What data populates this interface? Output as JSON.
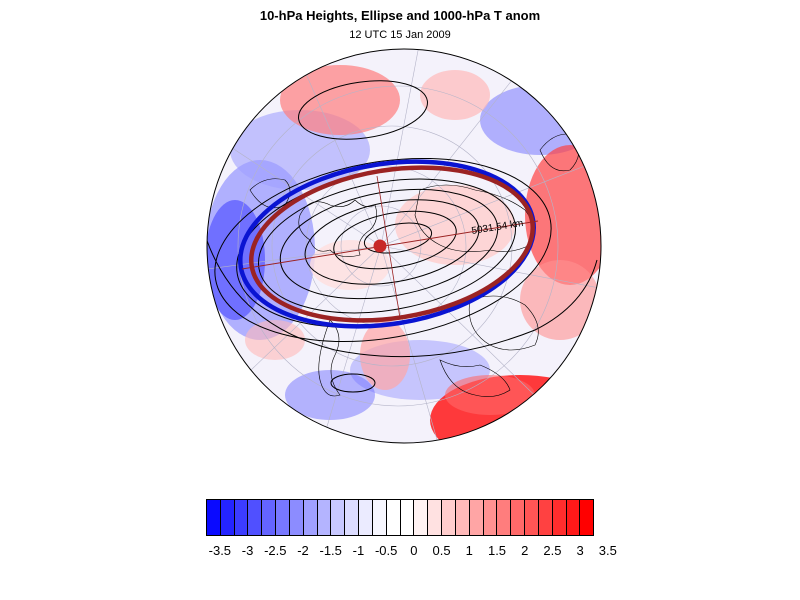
{
  "title": "10-hPa Heights, Ellipse and 1000-hPa T anom",
  "subtitle": "12 UTC 15 Jan 2009",
  "map": {
    "projection": "north polar orthographic",
    "ellipse_label": "5031.54 km",
    "colors": {
      "ellipse_blue": "#0a14d2",
      "ellipse_red": "#9b2323",
      "pole_dot": "#c82828",
      "contour": "#000000"
    }
  },
  "colorbar": {
    "labels": [
      "-3.5",
      "-3",
      "-2.5",
      "-2",
      "-1.5",
      "-1",
      "-0.5",
      "0",
      "0.5",
      "1",
      "1.5",
      "2",
      "2.5",
      "3",
      "3.5"
    ],
    "colors": [
      "#0a0aff",
      "#2424ff",
      "#3c3cff",
      "#5050ff",
      "#6464ff",
      "#7878ff",
      "#8c8cff",
      "#a0a0ff",
      "#b4b4ff",
      "#c8c8ff",
      "#dcdcff",
      "#ebebff",
      "#f7f7ff",
      "#ffffff",
      "#ffffff",
      "#fff2f2",
      "#ffe1e1",
      "#ffcdcd",
      "#ffb9b9",
      "#ffa5a5",
      "#ff9191",
      "#ff7d7d",
      "#ff6969",
      "#ff5555",
      "#ff4141",
      "#ff2d2d",
      "#ff1919",
      "#ff0000"
    ]
  }
}
